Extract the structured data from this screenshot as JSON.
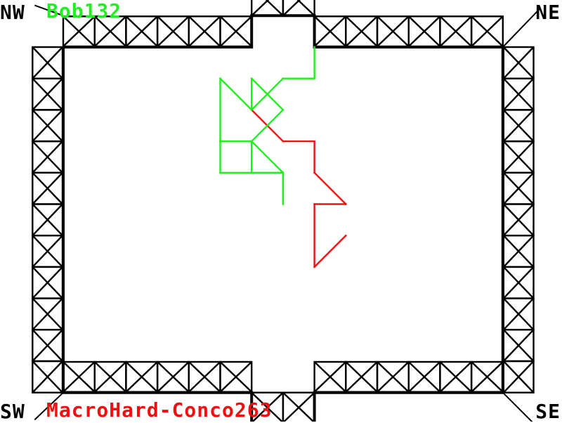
{
  "corners": {
    "nw": "NW",
    "ne": "NE",
    "sw": "SW",
    "se": "SE"
  },
  "players": {
    "top": {
      "name": "Bob132",
      "color": "#22ee22"
    },
    "bottom": {
      "name": "MacroHard-Conco263",
      "color": "#ee1111"
    }
  },
  "field": {
    "border_color": "#000000",
    "background": "#ffffff",
    "goal_top": "top-center",
    "goal_bottom": "bottom-center"
  },
  "moves": [
    {
      "player": "top",
      "path": [
        [
          8,
          0
        ],
        [
          8,
          1
        ],
        [
          7,
          1
        ],
        [
          6,
          2
        ],
        [
          5,
          1
        ],
        [
          5,
          3
        ],
        [
          6,
          3
        ],
        [
          6,
          4
        ],
        [
          7,
          4
        ],
        [
          7,
          5
        ],
        [
          7,
          4
        ],
        [
          6,
          3
        ]
      ]
    },
    {
      "player": "bottom",
      "path": [
        [
          6,
          2
        ],
        [
          7,
          3
        ],
        [
          8,
          3
        ],
        [
          8,
          4
        ],
        [
          9,
          5
        ],
        [
          8,
          5
        ],
        [
          8,
          7
        ],
        [
          9,
          6
        ]
      ]
    },
    {
      "player": "top",
      "path": [
        [
          6,
          2
        ],
        [
          6,
          1
        ],
        [
          7,
          2
        ],
        [
          6,
          3
        ],
        [
          5,
          3
        ],
        [
          5,
          4
        ],
        [
          6,
          4
        ],
        [
          7,
          4
        ]
      ]
    }
  ]
}
